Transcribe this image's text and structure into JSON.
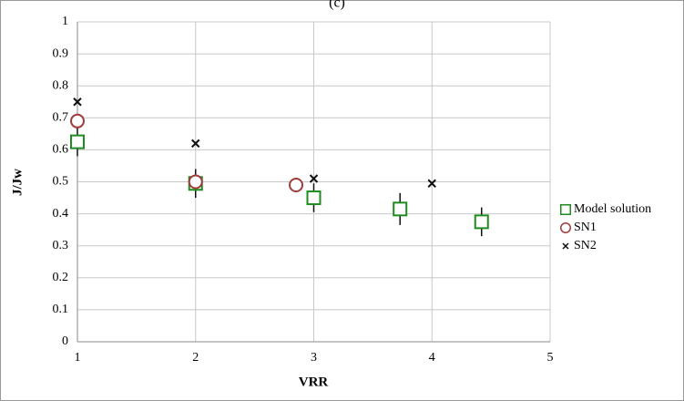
{
  "chart_data": {
    "type": "scatter",
    "title": "(c)",
    "xlabel": "VRR",
    "ylabel": "J/Jw",
    "xlim": [
      1,
      5
    ],
    "xticks": [
      1,
      2,
      3,
      4,
      5
    ],
    "ylim": [
      0,
      1
    ],
    "yticks": [
      0,
      0.1,
      0.2,
      0.3,
      0.4,
      0.5,
      0.6,
      0.7,
      0.8,
      0.9,
      1
    ],
    "grid": true,
    "legend": "right",
    "series": [
      {
        "name": "Model solution",
        "color": "#1e8c1e",
        "marker": "square",
        "x": [
          1,
          2,
          3,
          3.73,
          4.42
        ],
        "values": [
          0.625,
          0.495,
          0.45,
          0.415,
          0.375
        ],
        "errors": [
          0.045,
          0.045,
          0.045,
          0.05,
          0.045
        ]
      },
      {
        "name": "SN1",
        "color": "#a03c3c",
        "marker": "circle",
        "x": [
          1,
          2,
          2.85
        ],
        "values": [
          0.69,
          0.5,
          0.49
        ]
      },
      {
        "name": "SN2",
        "color": "#111111",
        "marker": "cross",
        "x": [
          1,
          2,
          3,
          4
        ],
        "values": [
          0.75,
          0.62,
          0.51,
          0.495
        ]
      }
    ]
  }
}
